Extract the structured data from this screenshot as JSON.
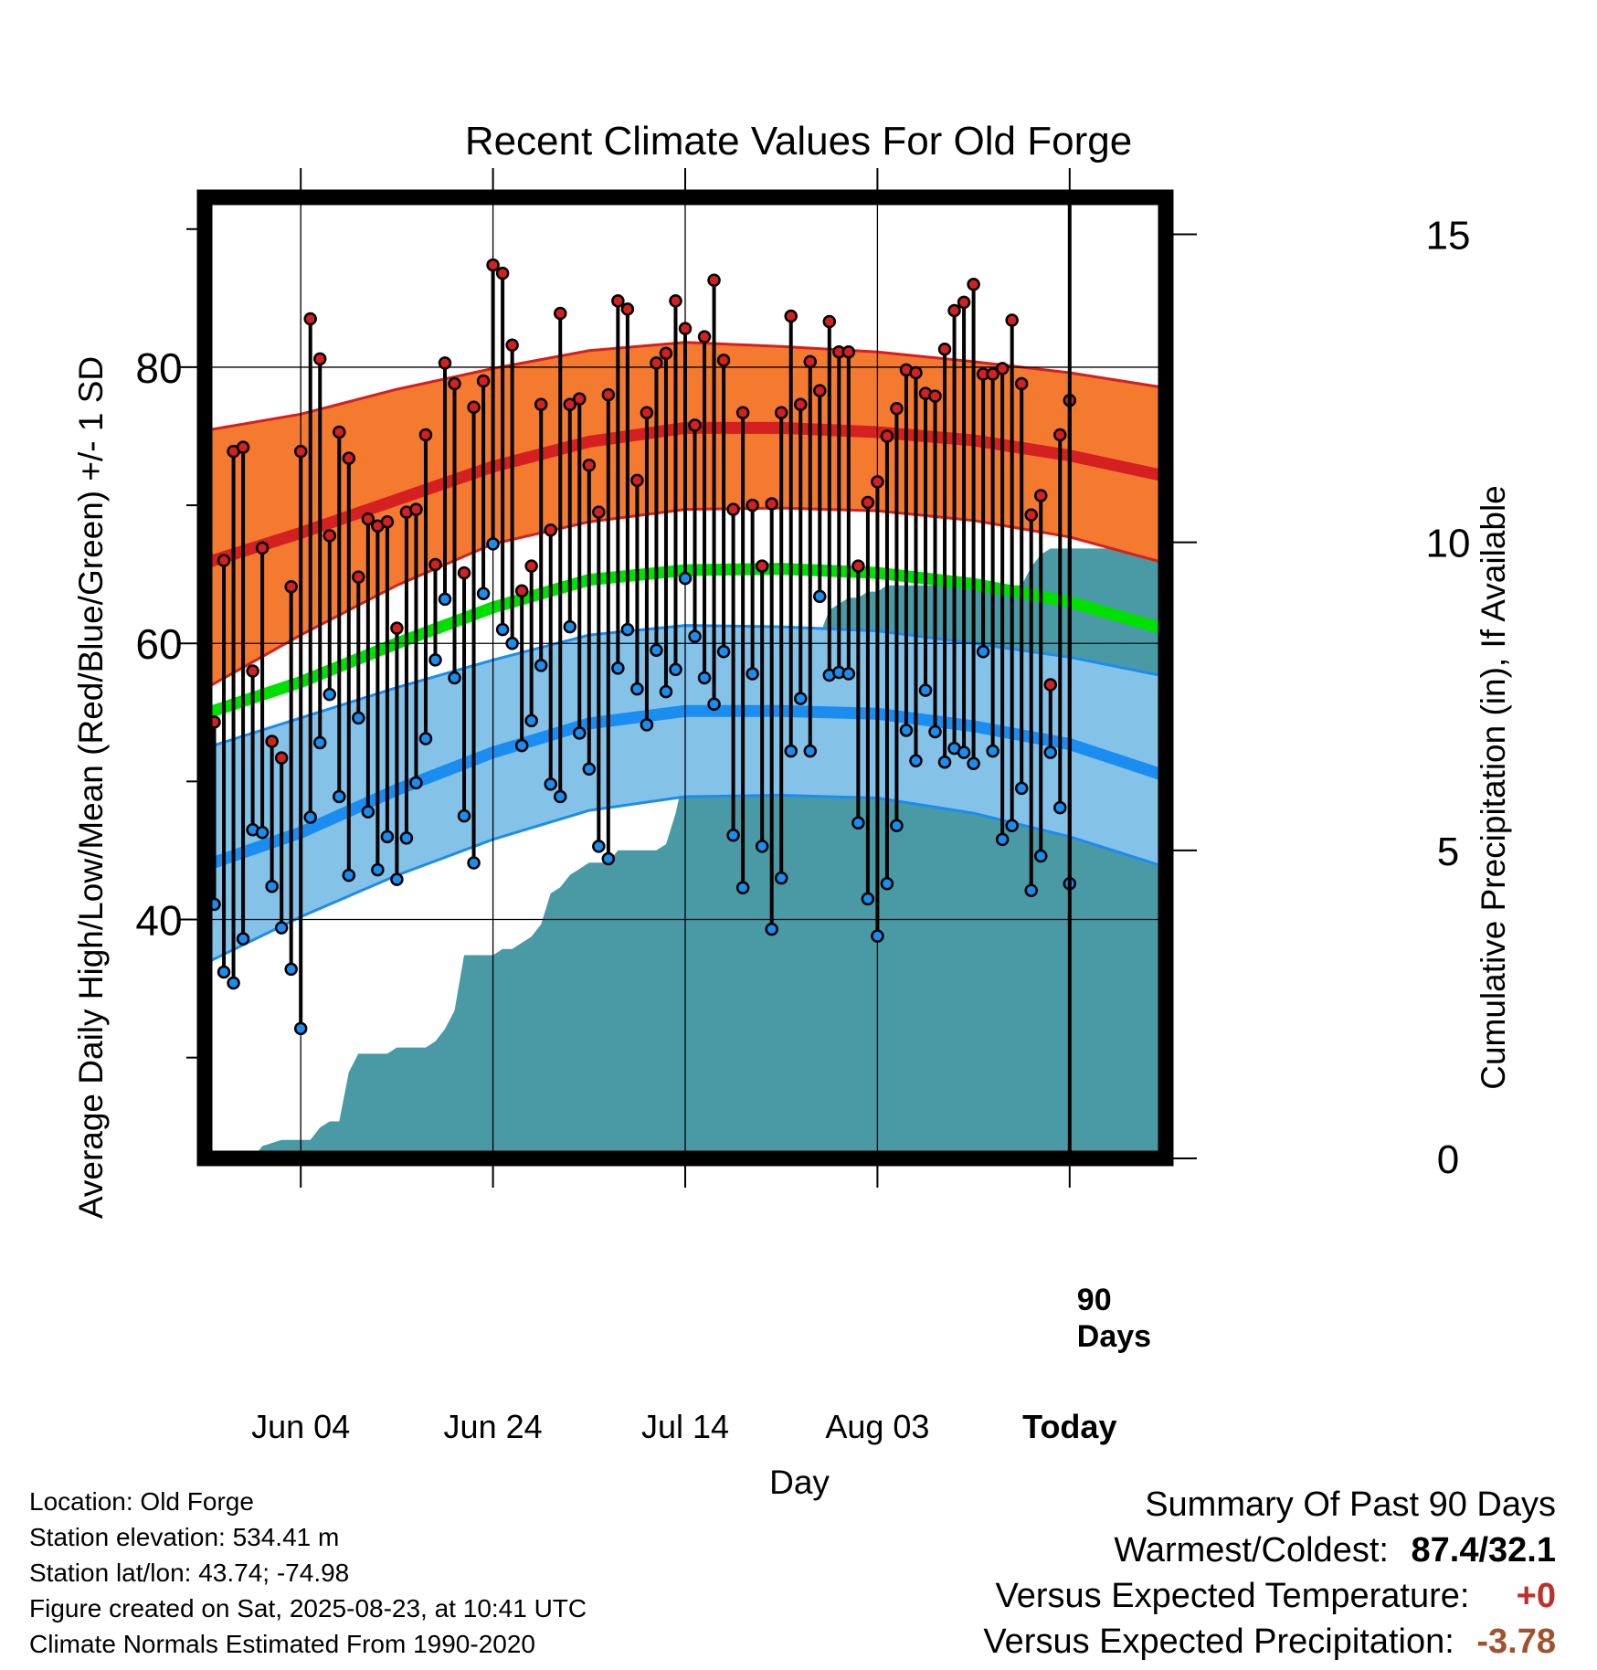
{
  "chart_data": {
    "type": "line",
    "title": "Recent Climate Values For Old Forge",
    "xlabel": "Day",
    "ylabel": "Average Daily High/Low/Mean (Red/Blue/Green) +/- 1 SD",
    "ylabel_right": "Cumulative Precipitation (in), If Available",
    "x_tick_labels": [
      "Jun 04",
      "Jun 24",
      "Jul 14",
      "Aug 03",
      "Today"
    ],
    "x_tick_days": [
      10,
      30,
      50,
      70,
      90
    ],
    "x_range_days": [
      0,
      100
    ],
    "y_left_ticks": [
      40,
      60,
      80
    ],
    "y_left_range": [
      22.7,
      92.3
    ],
    "y_right_ticks": [
      0,
      5,
      10,
      15
    ],
    "y_right_range": [
      0,
      15.6
    ],
    "grid": true,
    "today_marker": {
      "day": 90,
      "label_line1": "90",
      "label_line2": "Days"
    },
    "colors": {
      "high_band": "#f47a30",
      "high_line": "#d42020",
      "low_band": "#84c2e8",
      "low_line": "#1b8cf0",
      "mean_line": "#00e000",
      "precip": "#4a9aa5"
    },
    "normals": {
      "days": [
        0,
        10,
        20,
        30,
        40,
        50,
        60,
        70,
        80,
        90,
        100
      ],
      "high_mean": [
        65.8,
        68.0,
        70.4,
        72.8,
        74.6,
        75.6,
        75.6,
        75.3,
        74.7,
        73.6,
        72.1
      ],
      "high_upper": [
        75.4,
        76.6,
        78.4,
        79.9,
        81.2,
        81.8,
        81.5,
        81.1,
        80.4,
        79.6,
        78.5
      ],
      "high_lower": [
        56.7,
        60.6,
        64.2,
        67.2,
        68.8,
        69.7,
        69.8,
        69.6,
        68.9,
        67.7,
        65.8
      ],
      "low_mean": [
        43.9,
        46.3,
        49.4,
        52.1,
        54.2,
        55.1,
        55.1,
        54.9,
        54.0,
        52.7,
        50.4
      ],
      "low_upper": [
        52.4,
        54.6,
        56.8,
        58.8,
        60.6,
        61.3,
        61.2,
        60.9,
        60.0,
        59.0,
        57.6
      ],
      "low_lower": [
        36.8,
        40.2,
        43.2,
        45.8,
        47.9,
        48.9,
        49.0,
        48.8,
        47.7,
        46.0,
        43.8
      ],
      "mean": [
        54.9,
        57.2,
        60.0,
        62.6,
        64.6,
        65.3,
        65.4,
        65.1,
        64.3,
        63.0,
        61.0
      ]
    },
    "series": [
      {
        "name": "High",
        "values": [
          54.3,
          66.0,
          73.9,
          74.2,
          58.0,
          66.9,
          52.9,
          51.7,
          64.1,
          73.9,
          83.5,
          80.6,
          67.8,
          75.3,
          73.4,
          64.8,
          69.0,
          68.5,
          68.8,
          61.1,
          69.5,
          69.7,
          75.1,
          65.7,
          80.3,
          78.8,
          65.1,
          77.1,
          79.0,
          87.4,
          86.8,
          81.6,
          63.8,
          65.6,
          77.3,
          68.2,
          83.9,
          77.3,
          77.7,
          72.9,
          69.5,
          78.0,
          84.8,
          84.2,
          71.8,
          76.7,
          80.3,
          81.0,
          84.8,
          82.8,
          75.8,
          82.2,
          86.3,
          80.5,
          69.7,
          76.7,
          70.0,
          65.6,
          70.1,
          76.7,
          83.7,
          77.3,
          80.4,
          78.3,
          83.3,
          81.1,
          81.1,
          65.6,
          70.2,
          71.7,
          75.0,
          77.0,
          79.8,
          79.6,
          78.1,
          77.9,
          81.3,
          84.1,
          84.7,
          86.0,
          79.5,
          79.5,
          79.9,
          83.4,
          78.8,
          69.3,
          70.7,
          57.0,
          75.1,
          77.6
        ]
      },
      {
        "name": "Low",
        "values": [
          41.1,
          36.2,
          35.4,
          38.6,
          46.5,
          46.3,
          42.4,
          39.4,
          36.4,
          32.1,
          47.4,
          52.8,
          56.3,
          48.9,
          43.2,
          54.6,
          47.8,
          43.6,
          46.0,
          42.9,
          45.9,
          49.9,
          53.1,
          58.8,
          63.2,
          57.5,
          47.5,
          44.1,
          63.6,
          67.2,
          61.0,
          60.0,
          52.6,
          54.4,
          58.4,
          49.8,
          48.9,
          61.2,
          53.5,
          50.9,
          45.3,
          44.4,
          58.2,
          61.0,
          56.7,
          54.1,
          59.5,
          56.5,
          58.1,
          64.7,
          60.5,
          57.5,
          55.6,
          59.4,
          46.1,
          42.3,
          57.8,
          45.3,
          39.3,
          43.0,
          52.2,
          56.0,
          52.2,
          63.4,
          57.7,
          57.9,
          57.8,
          47.0,
          41.5,
          38.8,
          42.6,
          46.8,
          53.7,
          51.5,
          56.6,
          53.6,
          51.4,
          52.4,
          52.1,
          51.3,
          59.4,
          52.2,
          45.8,
          46.8,
          49.5,
          42.1,
          44.6,
          52.1,
          48.1,
          42.6
        ]
      },
      {
        "name": "Cumulative Precipitation",
        "days": [
          5,
          6,
          8,
          10,
          11,
          12,
          13,
          14,
          15,
          16,
          17,
          18,
          19,
          20,
          21,
          22,
          23,
          24,
          25,
          26,
          27,
          28,
          29,
          30,
          31,
          32,
          33,
          34,
          35,
          36,
          37,
          38,
          39,
          40,
          41,
          42,
          43,
          44,
          45,
          46,
          47,
          48,
          49,
          50,
          51,
          52,
          53,
          54,
          55,
          56,
          57,
          58,
          59,
          60,
          61,
          62,
          63,
          64,
          65,
          66,
          67,
          68,
          69,
          70,
          71,
          72,
          73,
          74,
          75,
          76,
          77,
          78,
          79,
          80,
          81,
          82,
          83,
          84,
          85,
          86,
          87,
          88,
          89,
          90,
          91,
          92,
          93,
          94,
          95,
          96,
          97,
          98,
          99,
          100
        ],
        "values": [
          0.0,
          0.2,
          0.3,
          0.3,
          0.3,
          0.5,
          0.6,
          0.6,
          1.4,
          1.7,
          1.7,
          1.7,
          1.7,
          1.8,
          1.8,
          1.8,
          1.8,
          1.9,
          2.1,
          2.4,
          3.3,
          3.3,
          3.3,
          3.3,
          3.4,
          3.4,
          3.5,
          3.6,
          3.8,
          4.3,
          4.4,
          4.6,
          4.7,
          4.8,
          4.8,
          4.8,
          5.0,
          5.0,
          5.0,
          5.0,
          5.0,
          5.1,
          5.6,
          6.3,
          6.6,
          7.0,
          7.2,
          7.4,
          7.5,
          7.7,
          7.7,
          7.8,
          7.9,
          8.0,
          8.0,
          8.3,
          8.5,
          8.5,
          8.9,
          9.0,
          9.1,
          9.1,
          9.2,
          9.2,
          9.3,
          9.3,
          9.3,
          9.3,
          9.3,
          9.3,
          9.3,
          9.3,
          9.3,
          9.3,
          9.3,
          9.3,
          9.3,
          9.3,
          9.3,
          9.6,
          9.8,
          9.9,
          9.9,
          9.9,
          9.9,
          9.9,
          9.9,
          9.9,
          9.9,
          9.9,
          9.9,
          9.9,
          9.9,
          9.9
        ]
      }
    ]
  },
  "meta": {
    "location": "Location: Old Forge",
    "elevation": "Station elevation: 534.41 m",
    "latlon": "Station lat/lon: 43.74; -74.98",
    "created": "Figure created on Sat, 2025-08-23, at 10:41 UTC",
    "normals": "Climate Normals Estimated From 1990-2020"
  },
  "summary": {
    "heading": "Summary Of Past 90 Days",
    "warm_cold_label": "Warmest/Coldest:",
    "warm_cold_value": "87.4/32.1",
    "temp_label": "Versus Expected Temperature:",
    "temp_value": "+0",
    "temp_color": "#c0302a",
    "precip_label": "Versus Expected Precipitation:",
    "precip_value": "-3.78",
    "precip_color": "#a0522d"
  }
}
